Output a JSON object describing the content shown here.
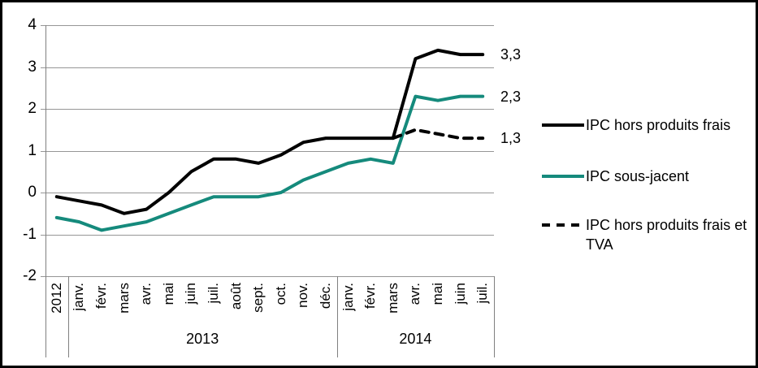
{
  "chart_data": {
    "type": "line",
    "title": "",
    "x_categories": [
      "2012",
      "janv.",
      "févr.",
      "mars",
      "avr.",
      "mai",
      "juin",
      "juil.",
      "août",
      "sept.",
      "oct.",
      "nov.",
      "déc.",
      "janv.",
      "févr.",
      "mars",
      "avr.",
      "mai",
      "juin",
      "juil."
    ],
    "year_groups": [
      {
        "label": "2013",
        "from": 1,
        "to": 12
      },
      {
        "label": "2014",
        "from": 13,
        "to": 19
      }
    ],
    "yticks": [
      4,
      3,
      2,
      1,
      0,
      -1,
      -2
    ],
    "ylim": [
      -2,
      4
    ],
    "grid": "horizontal",
    "legend_position": "right",
    "series": [
      {
        "name": "IPC hors produits frais",
        "color": "#000000",
        "dash": "solid",
        "end_label": "3,3",
        "values": [
          -0.1,
          -0.2,
          -0.3,
          -0.5,
          -0.4,
          0.0,
          0.5,
          0.8,
          0.8,
          0.7,
          0.9,
          1.2,
          1.3,
          1.3,
          1.3,
          1.3,
          3.2,
          3.4,
          3.3,
          3.3
        ]
      },
      {
        "name": "IPC sous-jacent",
        "color": "#158a7c",
        "dash": "solid",
        "end_label": "2,3",
        "values": [
          -0.6,
          -0.7,
          -0.9,
          -0.8,
          -0.7,
          -0.5,
          -0.3,
          -0.1,
          -0.1,
          -0.1,
          0.0,
          0.3,
          0.5,
          0.7,
          0.8,
          0.7,
          2.3,
          2.2,
          2.3,
          2.3
        ]
      },
      {
        "name": "IPC hors produits frais et TVA",
        "color": "#000000",
        "dash": "dashed",
        "end_label": "1,3",
        "values": [
          null,
          null,
          null,
          null,
          null,
          null,
          null,
          null,
          null,
          null,
          null,
          null,
          null,
          null,
          null,
          1.3,
          1.5,
          1.4,
          1.3,
          1.3
        ]
      }
    ],
    "colors": {
      "gridline": "#969696",
      "axis": "#808080",
      "series_black": "#000000",
      "series_teal": "#158a7c"
    }
  },
  "legend": {
    "items": [
      {
        "label": "IPC hors produits frais"
      },
      {
        "label": "IPC sous-jacent"
      },
      {
        "label": "IPC hors produits frais et TVA"
      }
    ]
  }
}
